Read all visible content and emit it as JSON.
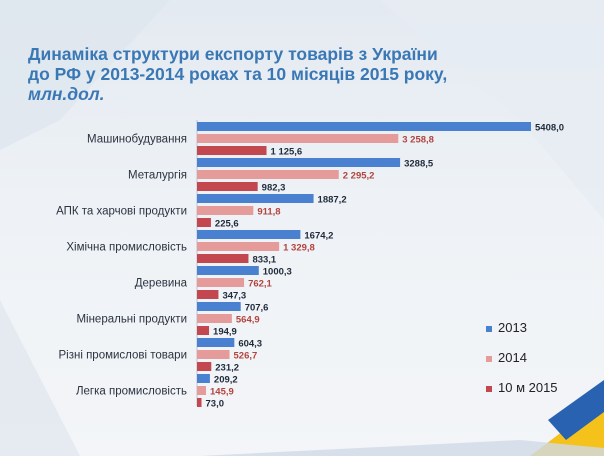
{
  "title": {
    "line1": "Динаміка структури експорту товарів з України",
    "line2": "до РФ у 2013-2014 роках та 10 місяців  2015 року,",
    "unit": "млн.дол."
  },
  "colors": {
    "series_2013": "#4a80d0",
    "series_2014": "#e69b9b",
    "series_2015": "#c2474f",
    "title": "#3a78b5",
    "label_2014_text": "#b2443f",
    "accent_yellow": "#f5c21b",
    "accent_blue": "#2a62b2"
  },
  "chart_data": {
    "type": "bar",
    "orientation": "horizontal",
    "categories": [
      "Машинобудування",
      "Металургія",
      "АПК та харчові продукти",
      "Хімічна промисловість",
      "Деревина",
      "Мінеральні продукти",
      "Різні промислові товари",
      "Легка промисловість"
    ],
    "series": [
      {
        "name": "2013",
        "values": [
          5408.0,
          3288.5,
          1887.2,
          1674.2,
          1000.3,
          707.6,
          604.3,
          209.2
        ],
        "labels": [
          "5408,0",
          "3288,5",
          "1887,2",
          "1674,2",
          "1000,3",
          "707,6",
          "604,3",
          "209,2"
        ]
      },
      {
        "name": "2014",
        "values": [
          3258.8,
          2295.2,
          911.8,
          1329.8,
          762.1,
          564.9,
          526.7,
          145.9
        ],
        "labels": [
          "3 258,8",
          "2 295,2",
          "911,8",
          "1 329,8",
          "762,1",
          "564,9",
          "526,7",
          "145,9"
        ]
      },
      {
        "name": "10 м 2015",
        "values": [
          1125.6,
          982.3,
          225.6,
          833.1,
          347.3,
          194.9,
          231.2,
          73.0
        ],
        "labels": [
          "1 125,6",
          "982,3",
          "225,6",
          "833,1",
          "347,3",
          "194,9",
          "231,2",
          "73,0"
        ]
      }
    ],
    "xlim": [
      0,
      5408.0
    ],
    "grid": false,
    "legend_position": "bottom-right"
  }
}
